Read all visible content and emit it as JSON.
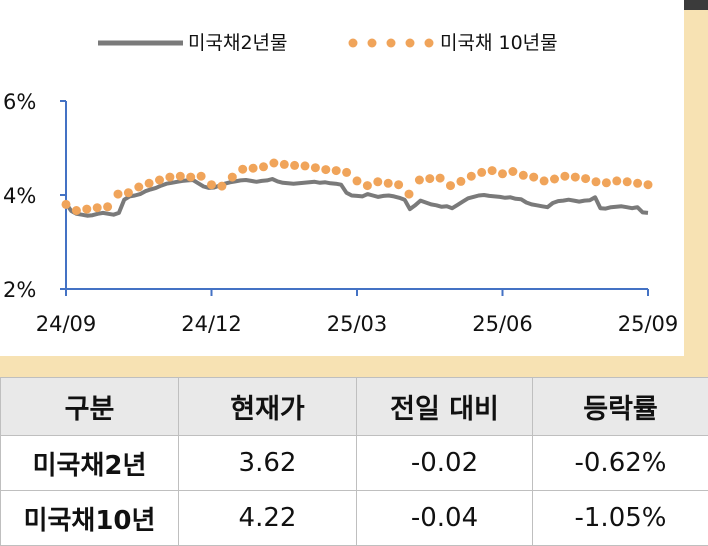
{
  "colors": {
    "background": "#f7e2b3",
    "us2y_line": "#7a7a7a",
    "us10y_dots": "#f0a45a",
    "axis": "#4472c4",
    "header_bg": "#e9e9e9"
  },
  "chart_data": {
    "type": "line",
    "legend": {
      "position": "top",
      "entries": [
        "미국채2년물",
        "미국채 10년물"
      ]
    },
    "y_ticks": [
      "2%",
      "4%",
      "6%"
    ],
    "ylim": [
      2,
      6
    ],
    "x_ticks": [
      "24/09",
      "24/12",
      "25/03",
      "25/06",
      "25/09"
    ],
    "series": [
      {
        "name": "미국채2년물",
        "style": "solid-line",
        "values": [
          3.82,
          3.66,
          3.6,
          3.58,
          3.56,
          3.57,
          3.6,
          3.62,
          3.6,
          3.58,
          3.62,
          3.9,
          3.97,
          3.99,
          4.02,
          4.08,
          4.12,
          4.15,
          4.2,
          4.24,
          4.26,
          4.28,
          4.3,
          4.31,
          4.32,
          4.25,
          4.18,
          4.15,
          4.16,
          4.2,
          4.24,
          4.27,
          4.29,
          4.31,
          4.32,
          4.3,
          4.28,
          4.3,
          4.31,
          4.34,
          4.29,
          4.26,
          4.25,
          4.24,
          4.25,
          4.26,
          4.27,
          4.28,
          4.26,
          4.27,
          4.25,
          4.24,
          4.22,
          4.05,
          3.99,
          3.98,
          3.97,
          4.02,
          3.99,
          3.96,
          3.98,
          3.99,
          3.97,
          3.94,
          3.9,
          3.7,
          3.78,
          3.88,
          3.84,
          3.8,
          3.78,
          3.75,
          3.76,
          3.72,
          3.79,
          3.86,
          3.93,
          3.96,
          3.99,
          4.0,
          3.98,
          3.97,
          3.96,
          3.94,
          3.95,
          3.92,
          3.91,
          3.84,
          3.8,
          3.78,
          3.76,
          3.74,
          3.83,
          3.87,
          3.88,
          3.9,
          3.88,
          3.86,
          3.88,
          3.89,
          3.95,
          3.72,
          3.71,
          3.74,
          3.75,
          3.76,
          3.74,
          3.72,
          3.74,
          3.63,
          3.62
        ]
      },
      {
        "name": "미국채 10년물",
        "style": "dotted",
        "values": [
          3.8,
          3.67,
          3.7,
          3.73,
          3.75,
          4.02,
          4.05,
          4.17,
          4.25,
          4.32,
          4.38,
          4.4,
          4.38,
          4.4,
          4.22,
          4.19,
          4.38,
          4.55,
          4.57,
          4.6,
          4.68,
          4.65,
          4.63,
          4.62,
          4.58,
          4.54,
          4.52,
          4.48,
          4.3,
          4.2,
          4.28,
          4.25,
          4.22,
          4.02,
          4.32,
          4.35,
          4.36,
          4.2,
          4.29,
          4.4,
          4.48,
          4.52,
          4.45,
          4.5,
          4.42,
          4.38,
          4.3,
          4.34,
          4.4,
          4.38,
          4.35,
          4.28,
          4.26,
          4.3,
          4.28,
          4.25,
          4.22
        ]
      }
    ]
  },
  "table": {
    "headers": [
      "구분",
      "현재가",
      "전일 대비",
      "등락률"
    ],
    "rows": [
      [
        "미국채2년",
        "3.62",
        "-0.02",
        "-0.62%"
      ],
      [
        "미국채10년",
        "4.22",
        "-0.04",
        "-1.05%"
      ]
    ]
  }
}
